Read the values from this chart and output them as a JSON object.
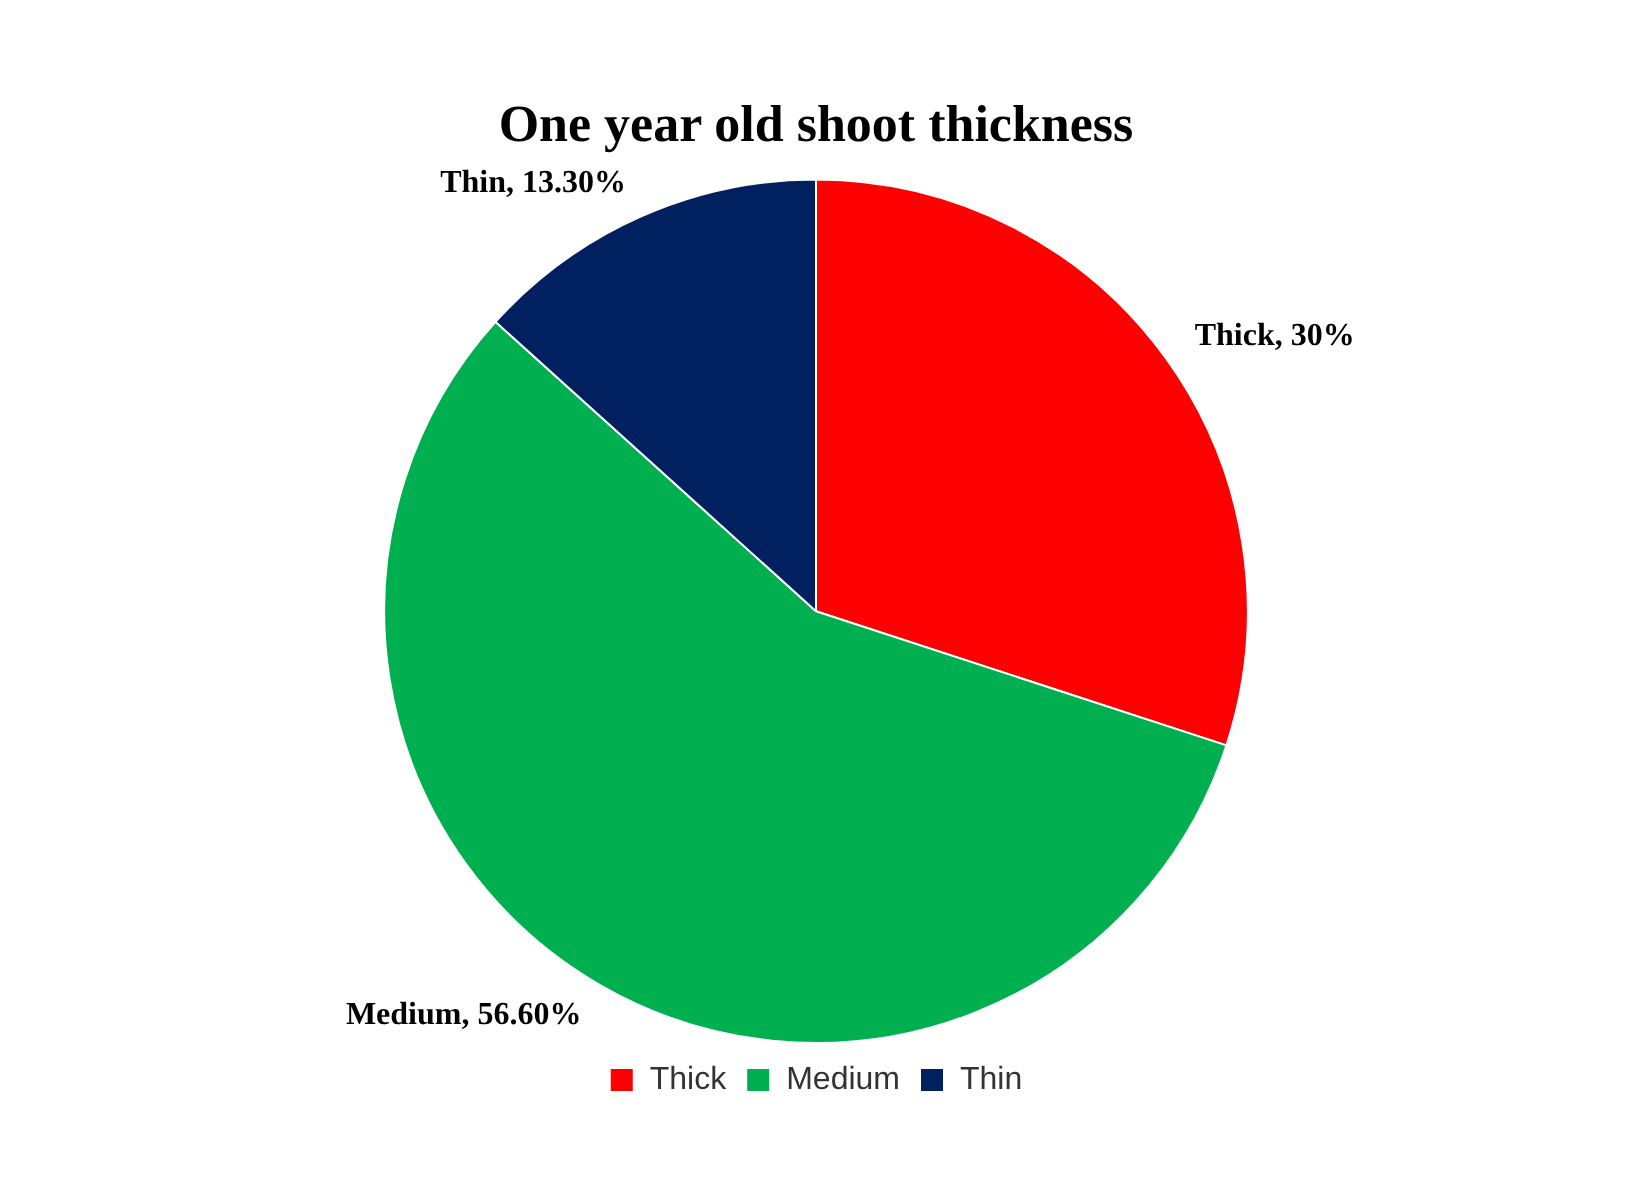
{
  "chart_data": {
    "type": "pie",
    "title": "One year old shoot thickness",
    "categories": [
      "Thick",
      "Medium",
      "Thin"
    ],
    "values": [
      30,
      56.6,
      13.3
    ],
    "value_labels": [
      "Thick, 30%",
      "Medium, 56.60%",
      "Thin, 13.30%"
    ],
    "colors": [
      "#ff0000",
      "#00b050",
      "#002060"
    ],
    "legend": "bottom"
  }
}
